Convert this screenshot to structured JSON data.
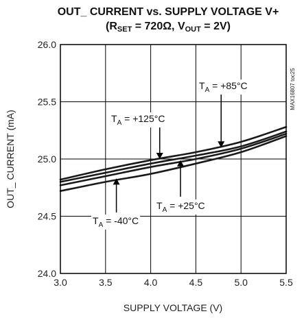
{
  "chart_data": {
    "type": "line",
    "title_line1": "OUT_ CURRENT vs. SUPPLY VOLTAGE V+",
    "title_line2_parts": [
      "(R",
      "SET",
      " = 720Ω, V",
      "OUT",
      " = 2V)"
    ],
    "xlabel": "SUPPLY VOLTAGE (V)",
    "ylabel": "OUT_ CURRENT (mA)",
    "xlim": [
      3.0,
      5.5
    ],
    "ylim": [
      24.0,
      26.0
    ],
    "x_ticks": [
      "3.0",
      "3.5",
      "4.0",
      "4.5",
      "5.0",
      "5.5"
    ],
    "y_ticks": [
      "24.0",
      "24.5",
      "25.0",
      "25.5",
      "26.0"
    ],
    "grid": true,
    "side_text": "MAX16807 toc25",
    "series": [
      {
        "name": "+125°C",
        "x": [
          3.0,
          3.5,
          4.0,
          4.5,
          5.0,
          5.5
        ],
        "y": [
          24.82,
          24.91,
          24.99,
          25.06,
          25.15,
          25.28
        ]
      },
      {
        "name": "+85°C",
        "x": [
          3.0,
          3.5,
          4.0,
          4.5,
          5.0,
          5.5
        ],
        "y": [
          24.8,
          24.88,
          24.96,
          25.03,
          25.11,
          25.24
        ]
      },
      {
        "name": "+25°C",
        "x": [
          3.0,
          3.5,
          4.0,
          4.5,
          5.0,
          5.5
        ],
        "y": [
          24.77,
          24.85,
          24.93,
          25.0,
          25.09,
          25.22
        ]
      },
      {
        "name": "-40°C",
        "x": [
          3.0,
          3.5,
          4.0,
          4.5,
          5.0,
          5.5
        ],
        "y": [
          24.72,
          24.8,
          24.87,
          24.96,
          25.06,
          25.2
        ]
      }
    ],
    "annotations": [
      {
        "label_main": "T",
        "label_sub": "A",
        "label_rest": " = +125°C",
        "x": 4.1,
        "y": 25.0
      },
      {
        "label_main": "T",
        "label_sub": "A",
        "label_rest": " = +85°C",
        "x": 4.78,
        "y": 25.1
      },
      {
        "label_main": "T",
        "label_sub": "A",
        "label_rest": " = +25°C",
        "x": 4.33,
        "y": 24.99
      },
      {
        "label_main": "T",
        "label_sub": "A",
        "label_rest": " = -40°C",
        "x": 3.62,
        "y": 24.83
      }
    ]
  }
}
